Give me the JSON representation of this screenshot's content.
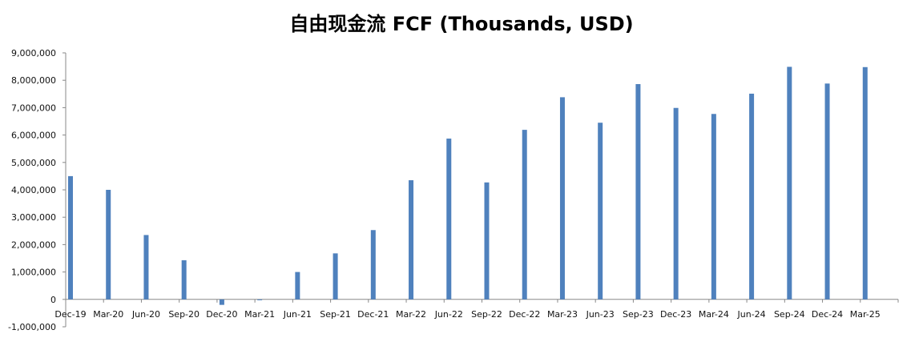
{
  "chart_data": {
    "type": "bar",
    "title": "自由现金流 FCF (Thousands, USD)",
    "xlabel": "",
    "ylabel": "",
    "categories": [
      "Dec-19",
      "Mar-20",
      "Jun-20",
      "Sep-20",
      "Dec-20",
      "Mar-21",
      "Jun-21",
      "Sep-21",
      "Dec-21",
      "Mar-22",
      "Jun-22",
      "Sep-22",
      "Dec-22",
      "Mar-23",
      "Jun-23",
      "Sep-23",
      "Dec-23",
      "Mar-24",
      "Jun-24",
      "Sep-24",
      "Dec-24",
      "Mar-25"
    ],
    "values": [
      4500000,
      4000000,
      2350000,
      1430000,
      -200000,
      -30000,
      1000000,
      1680000,
      2530000,
      4350000,
      5870000,
      4270000,
      6190000,
      7380000,
      6450000,
      7860000,
      6990000,
      6770000,
      7510000,
      8490000,
      7880000,
      8480000
    ],
    "ylim": [
      -1000000,
      9000000
    ],
    "yticks": [
      -1000000,
      0,
      1000000,
      2000000,
      3000000,
      4000000,
      5000000,
      6000000,
      7000000,
      8000000,
      9000000
    ],
    "ytick_labels": [
      "-1,000,000",
      "0",
      "1,000,000",
      "2,000,000",
      "3,000,000",
      "4,000,000",
      "5,000,000",
      "6,000,000",
      "7,000,000",
      "8,000,000",
      "9,000,000"
    ],
    "bar_color": "#4F81BD",
    "grid": false,
    "legend": "none"
  }
}
